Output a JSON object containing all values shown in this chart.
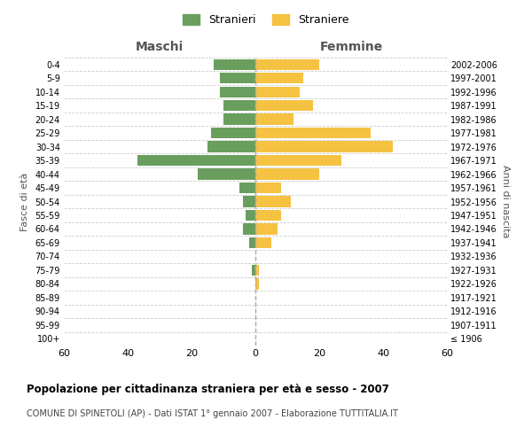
{
  "age_groups": [
    "100+",
    "95-99",
    "90-94",
    "85-89",
    "80-84",
    "75-79",
    "70-74",
    "65-69",
    "60-64",
    "55-59",
    "50-54",
    "45-49",
    "40-44",
    "35-39",
    "30-34",
    "25-29",
    "20-24",
    "15-19",
    "10-14",
    "5-9",
    "0-4"
  ],
  "birth_years": [
    "≤ 1906",
    "1907-1911",
    "1912-1916",
    "1917-1921",
    "1922-1926",
    "1927-1931",
    "1932-1936",
    "1937-1941",
    "1942-1946",
    "1947-1951",
    "1952-1956",
    "1957-1961",
    "1962-1966",
    "1967-1971",
    "1972-1976",
    "1977-1981",
    "1982-1986",
    "1987-1991",
    "1992-1996",
    "1997-2001",
    "2002-2006"
  ],
  "maschi": [
    0,
    0,
    0,
    0,
    0,
    1,
    0,
    2,
    4,
    3,
    4,
    5,
    18,
    37,
    15,
    14,
    10,
    10,
    11,
    11,
    13
  ],
  "femmine": [
    0,
    0,
    0,
    0,
    1,
    1,
    0,
    5,
    7,
    8,
    11,
    8,
    20,
    27,
    43,
    36,
    12,
    18,
    14,
    15,
    20
  ],
  "male_color": "#6a9e5e",
  "female_color": "#f5c242",
  "background_color": "#ffffff",
  "grid_color": "#cccccc",
  "title": "Popolazione per cittadinanza straniera per età e sesso - 2007",
  "subtitle": "COMUNE DI SPINETOLI (AP) - Dati ISTAT 1° gennaio 2007 - Elaborazione TUTTITALIA.IT",
  "xlabel_left": "Maschi",
  "xlabel_right": "Femmine",
  "ylabel_left": "Fasce di età",
  "ylabel_right": "Anni di nascita",
  "legend_male": "Stranieri",
  "legend_female": "Straniere",
  "xlim": 60,
  "bar_height": 0.8
}
